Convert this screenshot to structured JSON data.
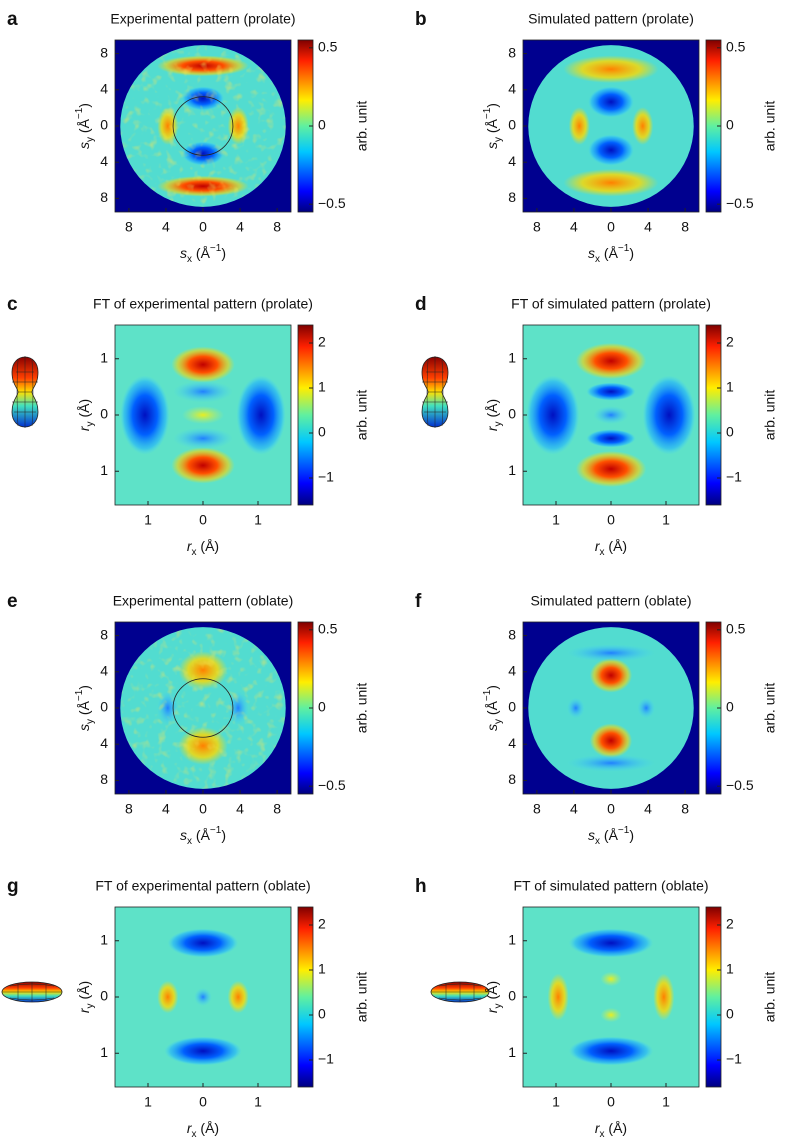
{
  "chart_data": [
    {
      "panel": "a",
      "type": "heatmap",
      "title": "Experimental pattern (prolate)",
      "colormap": "jet",
      "xlabel": [
        {
          "text": "s",
          "style": "italic"
        },
        {
          "text": "x",
          "style": "sub"
        },
        {
          "text": " (Å"
        },
        {
          "text": "−1",
          "style": "sup"
        },
        {
          "text": ")"
        }
      ],
      "ylabel": [
        {
          "text": "s",
          "style": "italic"
        },
        {
          "text": "y",
          "style": "sub"
        },
        {
          "text": " (Å"
        },
        {
          "text": "−1",
          "style": "sup"
        },
        {
          "text": ")"
        }
      ],
      "xlim": [
        -9.5,
        9.5
      ],
      "ylim": [
        -9.5,
        9.5
      ],
      "xticks": [
        {
          "value": -8,
          "label": "8"
        },
        {
          "value": -4,
          "label": "4"
        },
        0,
        4,
        8
      ],
      "yticks": [
        8,
        4,
        0,
        {
          "value": -4,
          "label": "4"
        },
        {
          "value": -8,
          "label": "8"
        }
      ],
      "colorbar": {
        "label": "arb. unit",
        "clim": [
          -0.55,
          0.55
        ],
        "ticks": [
          0.5,
          0,
          {
            "value": -0.5,
            "label": "−0.5"
          }
        ]
      }
    },
    {
      "panel": "b",
      "type": "heatmap",
      "title": "Simulated pattern (prolate)",
      "colormap": "jet",
      "xlabel": [
        {
          "text": "s",
          "style": "italic"
        },
        {
          "text": "x",
          "style": "sub"
        },
        {
          "text": " (Å"
        },
        {
          "text": "−1",
          "style": "sup"
        },
        {
          "text": ")"
        }
      ],
      "ylabel": [
        {
          "text": "s",
          "style": "italic"
        },
        {
          "text": "y",
          "style": "sub"
        },
        {
          "text": " (Å"
        },
        {
          "text": "−1",
          "style": "sup"
        },
        {
          "text": ")"
        }
      ],
      "xlim": [
        -9.5,
        9.5
      ],
      "ylim": [
        -9.5,
        9.5
      ],
      "xticks": [
        {
          "value": -8,
          "label": "8"
        },
        {
          "value": -4,
          "label": "4"
        },
        0,
        4,
        8
      ],
      "yticks": [
        8,
        4,
        0,
        {
          "value": -4,
          "label": "4"
        },
        {
          "value": -8,
          "label": "8"
        }
      ],
      "colorbar": {
        "label": "arb. unit",
        "clim": [
          -0.55,
          0.55
        ],
        "ticks": [
          0.5,
          0,
          {
            "value": -0.5,
            "label": "−0.5"
          }
        ]
      }
    },
    {
      "panel": "c",
      "type": "heatmap",
      "title": "FT of experimental pattern (prolate)",
      "colormap": "jet",
      "xlabel": [
        {
          "text": "r",
          "style": "italic"
        },
        {
          "text": "x",
          "style": "sub"
        },
        {
          "text": " (Å)"
        }
      ],
      "ylabel": [
        {
          "text": "r",
          "style": "italic"
        },
        {
          "text": "y",
          "style": "sub"
        },
        {
          "text": " (Å)"
        }
      ],
      "xlim": [
        -1.6,
        1.6
      ],
      "ylim": [
        -1.6,
        1.6
      ],
      "xticks": [
        {
          "value": -1,
          "label": "1"
        },
        0,
        1
      ],
      "yticks": [
        1,
        0,
        {
          "value": -1,
          "label": "1"
        }
      ],
      "colorbar": {
        "label": "arb. unit",
        "clim": [
          -1.6,
          2.4
        ],
        "ticks": [
          2,
          1,
          0,
          {
            "value": -1,
            "label": "−1"
          }
        ]
      }
    },
    {
      "panel": "d",
      "type": "heatmap",
      "title": "FT of simulated pattern (prolate)",
      "colormap": "jet",
      "xlabel": [
        {
          "text": "r",
          "style": "italic"
        },
        {
          "text": "x",
          "style": "sub"
        },
        {
          "text": " (Å)"
        }
      ],
      "ylabel": [
        {
          "text": "r",
          "style": "italic"
        },
        {
          "text": "y",
          "style": "sub"
        },
        {
          "text": " (Å)"
        }
      ],
      "xlim": [
        -1.6,
        1.6
      ],
      "ylim": [
        -1.6,
        1.6
      ],
      "xticks": [
        {
          "value": -1,
          "label": "1"
        },
        0,
        1
      ],
      "yticks": [
        1,
        0,
        {
          "value": -1,
          "label": "1"
        }
      ],
      "colorbar": {
        "label": "arb. unit",
        "clim": [
          -1.6,
          2.4
        ],
        "ticks": [
          2,
          1,
          0,
          {
            "value": -1,
            "label": "−1"
          }
        ]
      }
    },
    {
      "panel": "e",
      "type": "heatmap",
      "title": "Experimental pattern (oblate)",
      "colormap": "jet",
      "xlabel": [
        {
          "text": "s",
          "style": "italic"
        },
        {
          "text": "x",
          "style": "sub"
        },
        {
          "text": " (Å"
        },
        {
          "text": "−1",
          "style": "sup"
        },
        {
          "text": ")"
        }
      ],
      "ylabel": [
        {
          "text": "s",
          "style": "italic"
        },
        {
          "text": "y",
          "style": "sub"
        },
        {
          "text": " (Å"
        },
        {
          "text": "−1",
          "style": "sup"
        },
        {
          "text": ")"
        }
      ],
      "xlim": [
        -9.5,
        9.5
      ],
      "ylim": [
        -9.5,
        9.5
      ],
      "xticks": [
        {
          "value": -8,
          "label": "8"
        },
        {
          "value": -4,
          "label": "4"
        },
        0,
        4,
        8
      ],
      "yticks": [
        8,
        4,
        0,
        {
          "value": -4,
          "label": "4"
        },
        {
          "value": -8,
          "label": "8"
        }
      ],
      "colorbar": {
        "label": "arb. unit",
        "clim": [
          -0.55,
          0.55
        ],
        "ticks": [
          0.5,
          0,
          {
            "value": -0.5,
            "label": "−0.5"
          }
        ]
      }
    },
    {
      "panel": "f",
      "type": "heatmap",
      "title": "Simulated pattern (oblate)",
      "colormap": "jet",
      "xlabel": [
        {
          "text": "s",
          "style": "italic"
        },
        {
          "text": "x",
          "style": "sub"
        },
        {
          "text": " (Å"
        },
        {
          "text": "−1",
          "style": "sup"
        },
        {
          "text": ")"
        }
      ],
      "ylabel": [
        {
          "text": "s",
          "style": "italic"
        },
        {
          "text": "y",
          "style": "sub"
        },
        {
          "text": " (Å"
        },
        {
          "text": "−1",
          "style": "sup"
        },
        {
          "text": ")"
        }
      ],
      "xlim": [
        -9.5,
        9.5
      ],
      "ylim": [
        -9.5,
        9.5
      ],
      "xticks": [
        {
          "value": -8,
          "label": "8"
        },
        {
          "value": -4,
          "label": "4"
        },
        0,
        4,
        8
      ],
      "yticks": [
        8,
        4,
        0,
        {
          "value": -4,
          "label": "4"
        },
        {
          "value": -8,
          "label": "8"
        }
      ],
      "colorbar": {
        "label": "arb. unit",
        "clim": [
          -0.55,
          0.55
        ],
        "ticks": [
          0.5,
          0,
          {
            "value": -0.5,
            "label": "−0.5"
          }
        ]
      }
    },
    {
      "panel": "g",
      "type": "heatmap",
      "title": "FT of experimental pattern (oblate)",
      "colormap": "jet",
      "xlabel": [
        {
          "text": "r",
          "style": "italic"
        },
        {
          "text": "x",
          "style": "sub"
        },
        {
          "text": " (Å)"
        }
      ],
      "ylabel": [
        {
          "text": "r",
          "style": "italic"
        },
        {
          "text": "y",
          "style": "sub"
        },
        {
          "text": " (Å)"
        }
      ],
      "xlim": [
        -1.6,
        1.6
      ],
      "ylim": [
        -1.6,
        1.6
      ],
      "xticks": [
        {
          "value": -1,
          "label": "1"
        },
        0,
        1
      ],
      "yticks": [
        1,
        0,
        {
          "value": -1,
          "label": "1"
        }
      ],
      "colorbar": {
        "label": "arb. unit",
        "clim": [
          -1.6,
          2.4
        ],
        "ticks": [
          2,
          1,
          0,
          {
            "value": -1,
            "label": "−1"
          }
        ]
      }
    },
    {
      "panel": "h",
      "type": "heatmap",
      "title": "FT of simulated pattern (oblate)",
      "colormap": "jet",
      "xlabel": [
        {
          "text": "r",
          "style": "italic"
        },
        {
          "text": "x",
          "style": "sub"
        },
        {
          "text": " (Å)"
        }
      ],
      "ylabel": [
        {
          "text": "r",
          "style": "italic"
        },
        {
          "text": "y",
          "style": "sub"
        },
        {
          "text": " (Å)"
        }
      ],
      "xlim": [
        -1.6,
        1.6
      ],
      "ylim": [
        -1.6,
        1.6
      ],
      "xticks": [
        {
          "value": -1,
          "label": "1"
        },
        0,
        1
      ],
      "yticks": [
        1,
        0,
        {
          "value": -1,
          "label": "1"
        }
      ],
      "colorbar": {
        "label": "arb. unit",
        "clim": [
          -1.6,
          2.4
        ],
        "ticks": [
          2,
          1,
          0,
          {
            "value": -1,
            "label": "−1"
          }
        ]
      }
    }
  ]
}
